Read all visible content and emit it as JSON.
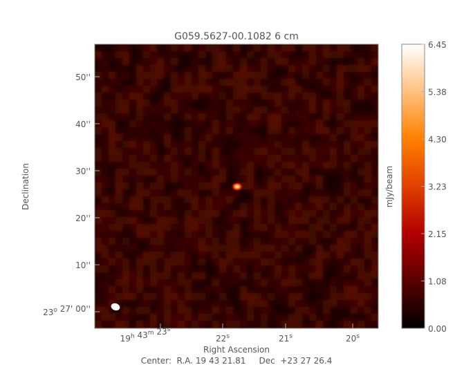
{
  "chart_data": {
    "type": "heatmap",
    "title": "G059.5627-00.1082 6 cm",
    "xlabel": "Right Ascension",
    "ylabel": "Declination",
    "x_ticks": [
      {
        "parts": [
          {
            "t": "19",
            "sup": "h"
          },
          {
            "t": " 43",
            "sup": "m"
          },
          {
            "t": " 23",
            "sup": "s"
          }
        ]
      },
      {
        "parts": [
          {
            "t": "22",
            "sup": "s"
          }
        ]
      },
      {
        "parts": [
          {
            "t": "21",
            "sup": "s"
          }
        ]
      },
      {
        "parts": [
          {
            "t": "20",
            "sup": "s"
          }
        ]
      }
    ],
    "y_ticks": [
      {
        "parts": [
          {
            "t": "23",
            "sup": "o"
          },
          {
            "t": " 27' 00''",
            "sup": ""
          }
        ]
      },
      {
        "parts": [
          {
            "t": "10''",
            "sup": ""
          }
        ]
      },
      {
        "parts": [
          {
            "t": "20''",
            "sup": ""
          }
        ]
      },
      {
        "parts": [
          {
            "t": "30''",
            "sup": ""
          }
        ]
      },
      {
        "parts": [
          {
            "t": "40''",
            "sup": ""
          }
        ]
      },
      {
        "parts": [
          {
            "t": "50''",
            "sup": ""
          }
        ]
      }
    ],
    "colorbar": {
      "label": "mJy/beam",
      "range": [
        0.0,
        6.45
      ],
      "ticks": [
        "0.00",
        "1.08",
        "2.15",
        "3.23",
        "4.30",
        "5.38",
        "6.45"
      ],
      "colormap": [
        "#000000",
        "#5a0000",
        "#b00000",
        "#e04000",
        "#ff8000",
        "#ffc080",
        "#ffffff"
      ]
    },
    "source": {
      "peak_mJy_per_beam": 6.45,
      "ra_offset_s": 21.6,
      "dec_offset_arcsec": 26.5
    },
    "beam": {
      "shape": "ellipse",
      "color": "#ffffff",
      "location": "bottom-left"
    },
    "background_level_mJy_per_beam": 0.6
  },
  "footer": {
    "center_text": "Center:  R.A. 19 43 21.81     Dec  +23 27 26.4"
  }
}
